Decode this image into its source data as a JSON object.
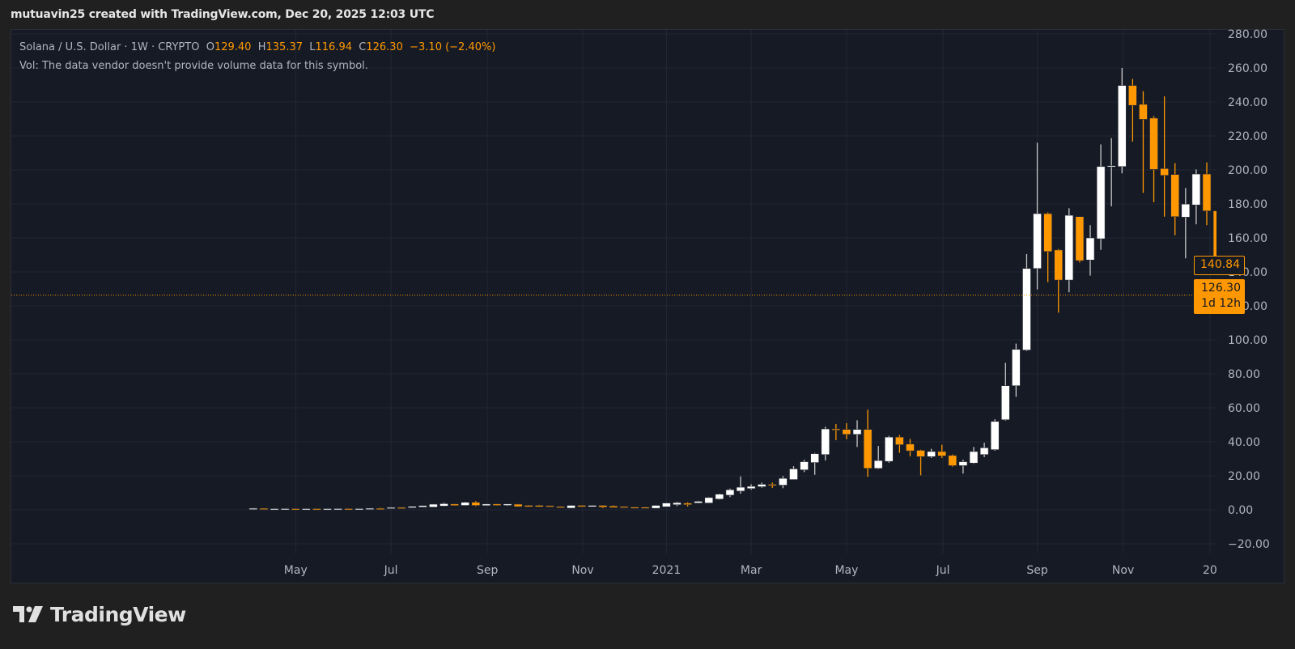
{
  "caption": "mutuavin25 created with TradingView.com, Dec 20, 2025 12:03 UTC",
  "legend": {
    "symbol": "Solana / U.S. Dollar · 1W · CRYPTO",
    "open_label": "O",
    "open": "129.40",
    "high_label": "H",
    "high": "135.37",
    "low_label": "L",
    "low": "116.94",
    "close_label": "C",
    "close": "126.30",
    "change": "−3.10 (−2.40%)",
    "vol_note": "Vol: The data vendor doesn't provide volume data for this symbol."
  },
  "price_tags": {
    "last_bar": "140.84",
    "current": "126.30",
    "countdown": "1d 12h"
  },
  "logo": {
    "text": "TradingView"
  },
  "colors": {
    "up": "#ffffff",
    "down": "#ff9800",
    "background": "#161a25",
    "grid": "#232734",
    "axis_text": "#b2b5be"
  },
  "chart_data": {
    "type": "candlestick",
    "title": "Solana / U.S. Dollar · 1W · CRYPTO",
    "ylim": [
      -20,
      280
    ],
    "yticks": [
      "280.00",
      "260.00",
      "240.00",
      "220.00",
      "200.00",
      "180.00",
      "160.00",
      "140.00",
      "120.00",
      "100.00",
      "80.00",
      "60.00",
      "40.00",
      "20.00",
      "0.00",
      "−20.00"
    ],
    "ytick_values": [
      280,
      260,
      240,
      220,
      200,
      180,
      160,
      140,
      120,
      100,
      80,
      60,
      40,
      20,
      0,
      -20
    ],
    "xticks": [
      {
        "label": "May",
        "week": 4.0
      },
      {
        "label": "Jul",
        "week": 13.0
      },
      {
        "label": "Sep",
        "week": 22.1
      },
      {
        "label": "Nov",
        "week": 31.1
      },
      {
        "label": "2021",
        "week": 39.0
      },
      {
        "label": "Mar",
        "week": 47.0
      },
      {
        "label": "May",
        "week": 56.0
      },
      {
        "label": "Jul",
        "week": 65.1
      },
      {
        "label": "Sep",
        "week": 74.0
      },
      {
        "label": "Nov",
        "week": 82.1
      },
      {
        "label": "20",
        "week": 90.3
      }
    ],
    "current_price_line": 126.3,
    "candles_ohlc": [
      [
        0.6,
        1.0,
        0.5,
        0.9
      ],
      [
        0.85,
        0.9,
        0.65,
        0.7
      ],
      [
        0.6,
        0.75,
        0.55,
        0.7
      ],
      [
        0.62,
        0.75,
        0.58,
        0.72
      ],
      [
        0.7,
        0.75,
        0.55,
        0.6
      ],
      [
        0.6,
        0.75,
        0.55,
        0.7
      ],
      [
        0.7,
        0.75,
        0.55,
        0.6
      ],
      [
        0.6,
        0.75,
        0.55,
        0.7
      ],
      [
        0.62,
        0.75,
        0.58,
        0.72
      ],
      [
        0.72,
        0.75,
        0.55,
        0.6
      ],
      [
        0.6,
        0.75,
        0.55,
        0.72
      ],
      [
        0.7,
        0.95,
        0.65,
        0.9
      ],
      [
        0.85,
        1.2,
        0.6,
        0.65
      ],
      [
        0.9,
        1.5,
        0.85,
        1.4
      ],
      [
        1.4,
        1.5,
        1.0,
        1.1
      ],
      [
        1.2,
        2.1,
        1.1,
        2.0
      ],
      [
        1.6,
        2.6,
        1.5,
        2.5
      ],
      [
        1.6,
        3.4,
        1.5,
        3.3
      ],
      [
        2.2,
        4.2,
        2.1,
        3.6
      ],
      [
        3.4,
        3.6,
        2.4,
        2.5
      ],
      [
        2.6,
        4.7,
        2.5,
        4.4
      ],
      [
        4.4,
        5.2,
        2.1,
        2.6
      ],
      [
        2.5,
        3.6,
        2.4,
        3.4
      ],
      [
        3.4,
        3.6,
        2.4,
        2.6
      ],
      [
        2.6,
        3.5,
        2.3,
        3.4
      ],
      [
        3.3,
        3.4,
        1.8,
        1.9
      ],
      [
        2.6,
        2.8,
        1.7,
        1.8
      ],
      [
        2.6,
        2.9,
        1.7,
        1.8
      ],
      [
        2.4,
        2.5,
        1.7,
        1.8
      ],
      [
        1.9,
        2.0,
        1.2,
        1.3
      ],
      [
        1.0,
        2.7,
        0.9,
        2.6
      ],
      [
        2.6,
        2.7,
        1.7,
        1.8
      ],
      [
        1.8,
        2.7,
        1.7,
        2.6
      ],
      [
        2.6,
        2.7,
        1.0,
        1.6
      ],
      [
        2.2,
        2.6,
        1.2,
        1.3
      ],
      [
        1.9,
        2.0,
        1.2,
        1.3
      ],
      [
        1.6,
        1.7,
        0.8,
        0.9
      ],
      [
        1.5,
        1.6,
        0.8,
        0.9
      ],
      [
        0.9,
        2.7,
        0.8,
        2.6
      ],
      [
        1.8,
        4.1,
        1.7,
        4.0
      ],
      [
        3.0,
        4.7,
        2.2,
        4.2
      ],
      [
        3.9,
        4.5,
        2.0,
        3.0
      ],
      [
        4.0,
        5.3,
        3.8,
        5.0
      ],
      [
        4.0,
        7.5,
        3.9,
        7.2
      ],
      [
        6.3,
        9.5,
        6.0,
        9.2
      ],
      [
        8.6,
        12.5,
        7.5,
        11.8
      ],
      [
        11.0,
        19.7,
        9.5,
        13.3
      ],
      [
        12.5,
        15.0,
        11.8,
        13.8
      ],
      [
        13.6,
        16.0,
        13.0,
        15.0
      ],
      [
        15.0,
        16.0,
        12.9,
        14.3
      ],
      [
        14.5,
        19.8,
        12.7,
        18.5
      ],
      [
        17.8,
        25.7,
        17.8,
        24.1
      ],
      [
        23.5,
        29.4,
        22.2,
        28.3
      ],
      [
        27.8,
        33.5,
        20.6,
        33.0
      ],
      [
        32.5,
        48.9,
        29.0,
        47.6
      ],
      [
        47.6,
        50.5,
        41.0,
        47.3
      ],
      [
        47.3,
        51.0,
        41.6,
        44.4
      ],
      [
        44.4,
        52.7,
        37.0,
        47.3
      ],
      [
        47.3,
        58.9,
        19.4,
        24.4
      ],
      [
        24.4,
        37.6,
        24.0,
        29.0
      ],
      [
        28.5,
        43.5,
        27.7,
        42.8
      ],
      [
        42.8,
        44.0,
        33.5,
        38.3
      ],
      [
        38.7,
        41.7,
        31.5,
        34.7
      ],
      [
        35.0,
        35.4,
        20.3,
        31.3
      ],
      [
        31.3,
        35.9,
        30.5,
        34.3
      ],
      [
        34.3,
        38.3,
        30.5,
        31.7
      ],
      [
        32.0,
        32.6,
        25.4,
        26.0
      ],
      [
        26.0,
        29.5,
        21.3,
        28.3
      ],
      [
        27.5,
        37.0,
        27.0,
        34.3
      ],
      [
        32.5,
        39.5,
        31.0,
        36.5
      ],
      [
        35.4,
        53.3,
        34.8,
        52.0
      ],
      [
        53.0,
        86.5,
        52.5,
        73.0
      ],
      [
        73.0,
        97.8,
        66.5,
        94.4
      ],
      [
        94.0,
        150.5,
        93.5,
        142.0
      ],
      [
        142.0,
        216.0,
        129.7,
        174.3
      ],
      [
        174.3,
        175.0,
        134.0,
        152.0
      ],
      [
        152.9,
        153.5,
        116.0,
        135.2
      ],
      [
        135.2,
        177.5,
        128.0,
        173.3
      ],
      [
        172.5,
        172.5,
        145.5,
        146.6
      ],
      [
        147.0,
        167.5,
        137.8,
        160.0
      ],
      [
        159.5,
        215.0,
        153.0,
        202.0
      ],
      [
        202.0,
        218.7,
        178.6,
        202.5
      ],
      [
        202.0,
        260.0,
        198.0,
        249.7
      ],
      [
        249.7,
        253.5,
        216.7,
        238.0
      ],
      [
        238.6,
        246.3,
        186.5,
        229.8
      ],
      [
        230.5,
        231.7,
        181.0,
        200.3
      ],
      [
        200.8,
        243.3,
        172.5,
        196.8
      ],
      [
        197.3,
        204.0,
        161.6,
        172.5
      ],
      [
        172.2,
        189.4,
        148.0,
        179.9
      ],
      [
        179.4,
        200.3,
        168.0,
        197.6
      ],
      [
        197.6,
        204.4,
        167.5,
        175.9
      ],
      [
        175.9,
        175.9,
        140.5,
        140.84
      ]
    ]
  }
}
